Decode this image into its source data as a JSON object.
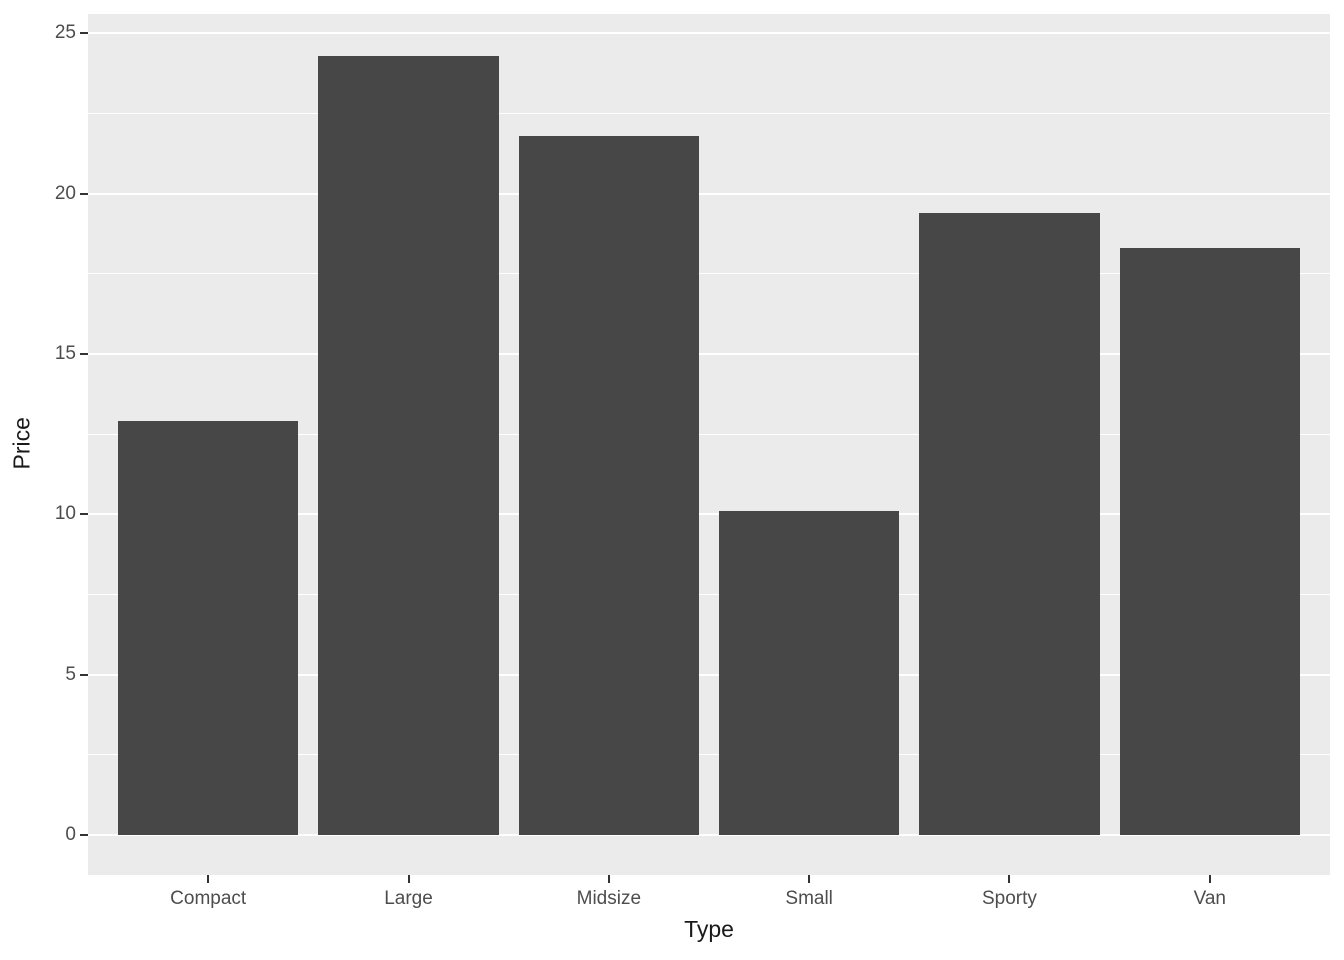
{
  "chart_data": {
    "type": "bar",
    "title": "",
    "xlabel": "Type",
    "ylabel": "Price",
    "categories": [
      "Compact",
      "Large",
      "Midsize",
      "Small",
      "Sporty",
      "Van"
    ],
    "values": [
      12.9,
      24.3,
      21.8,
      10.1,
      19.4,
      18.3
    ],
    "ylim": [
      -1.25,
      25.6
    ],
    "yticks_major": [
      0,
      5,
      10,
      15,
      20,
      25
    ],
    "ytick_labels": [
      "0",
      "5",
      "10",
      "15",
      "20",
      "25"
    ],
    "yticks_minor": [
      2.5,
      7.5,
      12.5,
      17.5,
      22.5
    ],
    "grid": "major+minor",
    "legend": "none",
    "style": {
      "bar_fill": "#474747",
      "panel_bg": "#EBEBEB",
      "grid_color": "#FFFFFF",
      "tick_label_color": "#4D4D4D",
      "axis_title_color": "#1A1A1A",
      "tick_mark_color": "#333333",
      "background": "#FFFFFF"
    }
  }
}
